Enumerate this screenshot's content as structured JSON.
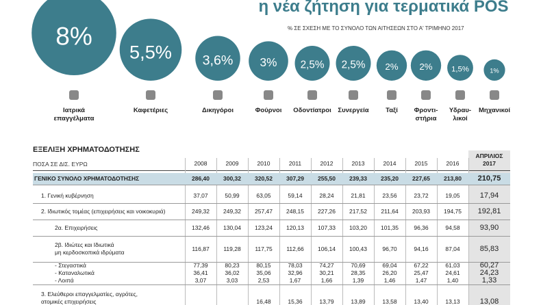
{
  "chart_data": {
    "type": "bubble",
    "title": "η νέα ζήτηση για τερματικά POS",
    "subtitle": "% ΣΕ ΣΧΕΣΗ ΜΕ ΤΟ ΣΥΝΟΛΟ ΤΩΝ ΑΙΤΗΣΕΩΝ ΣΤΟ Α' ΤΡΙΜΗΝΟ 2017",
    "categories": [
      "Ιατρικά\nεπαγγέλματα",
      "Καφετέριες",
      "Δικηγόροι",
      "Φούρνοι",
      "Οδοντίατροι",
      "Συνεργεία",
      "Ταξί",
      "Φροντι-\nστήρια",
      "Υδραυ-\nλικοί",
      "Μηχανικοί"
    ],
    "values": [
      8,
      5.5,
      3.6,
      3,
      2.5,
      2.5,
      2,
      2,
      1.5,
      1
    ],
    "value_labels": [
      "8%",
      "5,5%",
      "3,6%",
      "3%",
      "2,5%",
      "2,5%",
      "2%",
      "2%",
      "1,5%",
      "1%"
    ],
    "color": "#3d7d8c"
  },
  "table": {
    "title": "ΕΞΕΛΙΞΗ ΧΡΗΜΑΤΟΔΟΤΗΣΗΣ",
    "unit": "ΠΟΣΑ ΣΕ ΔΙΣ. ΕΥΡΩ",
    "columns": [
      "2008",
      "2009",
      "2010",
      "2011",
      "2012",
      "2013",
      "2014",
      "2015",
      "2016",
      "ΑΠΡΙΛΙΟΣ\n2017"
    ],
    "rows": [
      {
        "label": "ΓΕΝΙΚΟ ΣΥΝΟΛΟ ΧΡΗΜΑΤΟΔΟΤΗΣΗΣ",
        "cells": [
          "286,40",
          "300,32",
          "320,52",
          "307,29",
          "255,50",
          "239,33",
          "235,20",
          "227,65",
          "213,80",
          "210,75"
        ]
      },
      {
        "label": "1. Γενική κυβέρνηση",
        "cells": [
          "37,07",
          "50,99",
          "63,05",
          "59,14",
          "28,24",
          "21,81",
          "23,56",
          "23,72",
          "19,05",
          "17,94"
        ]
      },
      {
        "label": "2. Ιδιωτικός τομέας (επιχειρήσεις και νοικοκυριά)",
        "cells": [
          "249,32",
          "249,32",
          "257,47",
          "248,15",
          "227,26",
          "217,52",
          "211,64",
          "203,93",
          "194,75",
          "192,81"
        ]
      },
      {
        "label": "2α. Επιχειρήσεις",
        "cells": [
          "132,46",
          "130,04",
          "123,24",
          "120,13",
          "107,33",
          "103,20",
          "101,35",
          "96,36",
          "94,58",
          "93,90"
        ]
      },
      {
        "label": "2β. Ιδιώτες και Ιδιωτικά\nμη κερδοσκοπικά ιδρύματα",
        "cells": [
          "116,87",
          "119,28",
          "117,75",
          "112,66",
          "106,14",
          "100,43",
          "96,70",
          "94,16",
          "87,04",
          "85,83"
        ]
      },
      {
        "label": "- Στεγαστικά",
        "cells": [
          "77,39",
          "80,23",
          "80,15",
          "78,03",
          "74,27",
          "70,69",
          "69,04",
          "67,22",
          "61,03",
          "60,27"
        ]
      },
      {
        "label": "- Καταναλωτικά",
        "cells": [
          "36,41",
          "36,02",
          "35,06",
          "32,96",
          "30,21",
          "28,35",
          "26,20",
          "25,47",
          "24,61",
          "24,23"
        ]
      },
      {
        "label": "- Λοιπά",
        "cells": [
          "3,07",
          "3,03",
          "2,53",
          "1,67",
          "1,66",
          "1,39",
          "1,46",
          "1,47",
          "1,40",
          "1,33"
        ]
      },
      {
        "label": "3. Ελεύθεροι επαγγελματίες, αγρότες,\nατομικές επιχειρήσεις",
        "cells": [
          null,
          null,
          "16,48",
          "15,36",
          "13,79",
          "13,89",
          "13,58",
          "13,40",
          "13,13",
          "13,08"
        ]
      }
    ]
  }
}
